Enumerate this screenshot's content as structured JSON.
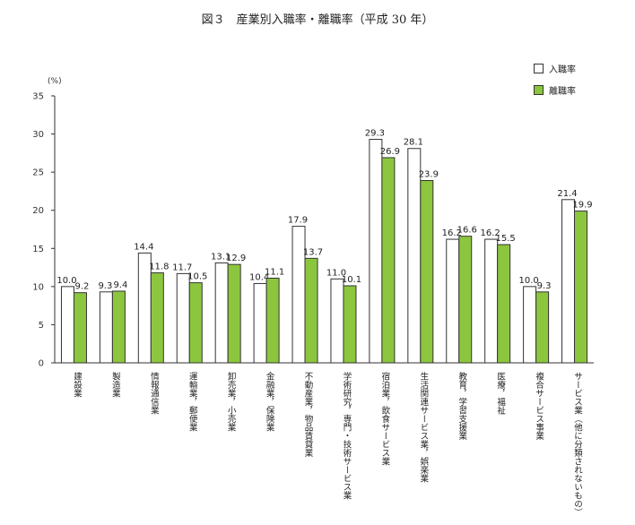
{
  "title": "図３　産業別入職率・離職率（平成 30 年）",
  "unit_label": "(%)",
  "colors": {
    "hire": "#ffffff",
    "separation": "#8cc63f",
    "outline": "#333333"
  },
  "legend": [
    {
      "label": "入職率",
      "color": "#ffffff"
    },
    {
      "label": "離職率",
      "color": "#8cc63f"
    }
  ],
  "chart_data": {
    "type": "bar",
    "title": "図３　産業別入職率・離職率（平成 30 年）",
    "ylabel": "(%)",
    "xlabel": "",
    "ylim": [
      0,
      35
    ],
    "yticks": [
      0,
      5,
      10,
      15,
      20,
      25,
      30,
      35
    ],
    "grid": false,
    "legend_position": "top-right",
    "categories": [
      "建設業",
      "製造業",
      "情報通信業",
      "運輸業，郵便業",
      "卸売業，小売業",
      "金融業，保険業",
      "不動産業，物品賃貸業",
      "学術研究，専門・技術サービス業",
      "宿泊業，飲食サービス業",
      "生活関連サービス業，娯楽業",
      "教育，学習支援業",
      "医療，福祉",
      "複合サービス事業",
      "サービス業（他に分類されないもの）"
    ],
    "series": [
      {
        "name": "入職率",
        "values": [
          10.0,
          9.3,
          14.4,
          11.7,
          13.1,
          10.4,
          17.9,
          11.0,
          29.3,
          28.1,
          16.2,
          16.2,
          10.0,
          21.4
        ]
      },
      {
        "name": "離職率",
        "values": [
          9.2,
          9.4,
          11.8,
          10.5,
          12.9,
          11.1,
          13.7,
          10.1,
          26.9,
          23.9,
          16.6,
          15.5,
          9.3,
          19.9
        ]
      }
    ]
  }
}
